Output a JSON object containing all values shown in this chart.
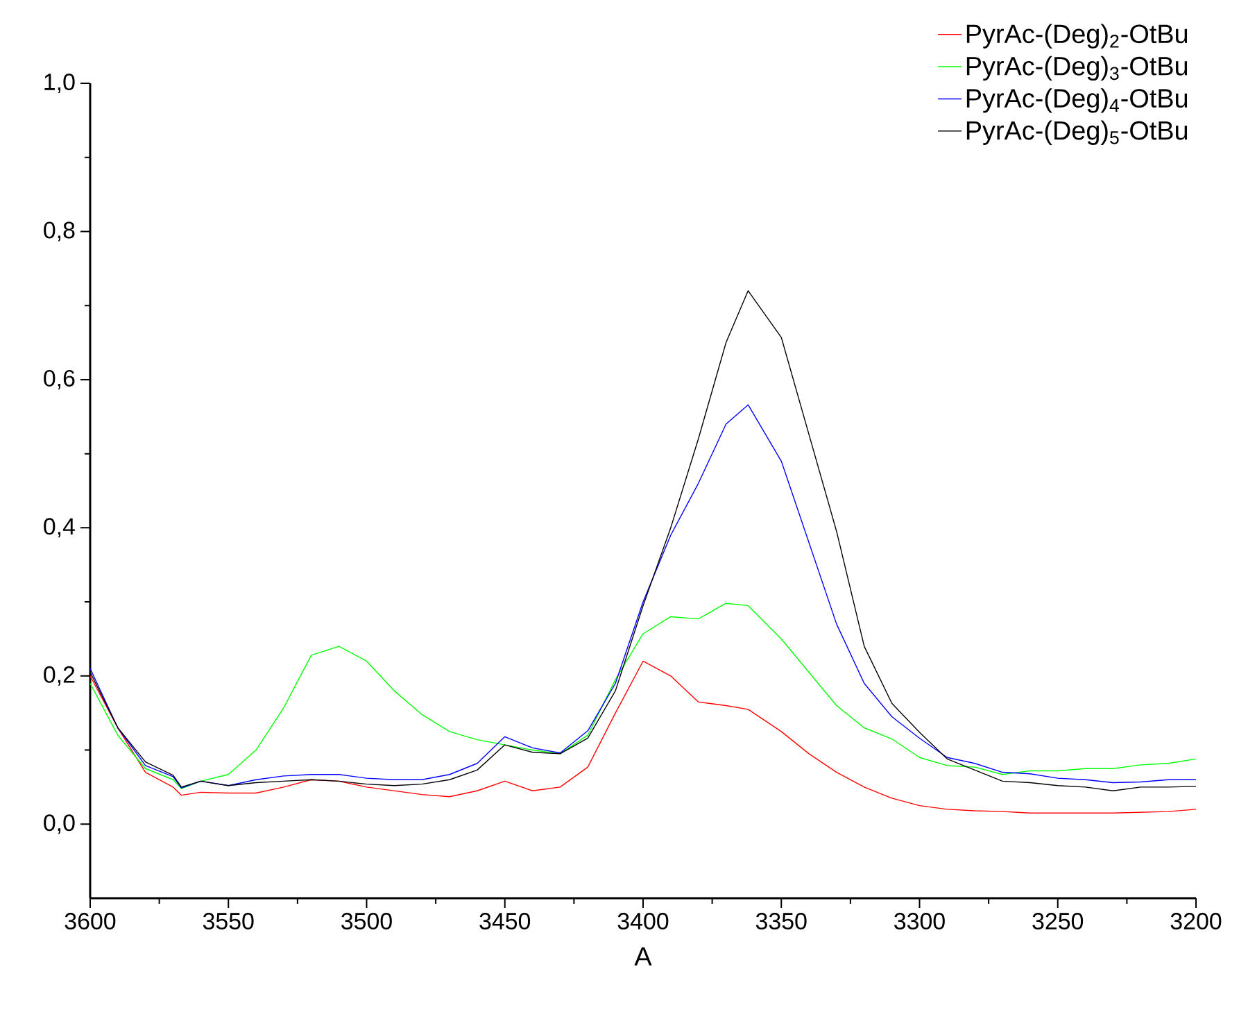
{
  "chart_data": {
    "type": "line",
    "xlabel": "A",
    "xlim": [
      3600,
      3200
    ],
    "ylim": [
      -0.1,
      1.0
    ],
    "xticks": [
      3600,
      3550,
      3500,
      3450,
      3400,
      3350,
      3300,
      3250,
      3200
    ],
    "yticks": [
      {
        "value": 0,
        "label": "0,0"
      },
      {
        "value": 0.2,
        "label": "0,2"
      },
      {
        "value": 0.4,
        "label": "0,4"
      },
      {
        "value": 0.6,
        "label": "0,6"
      },
      {
        "value": 0.8,
        "label": "0,8"
      },
      {
        "value": 1.0,
        "label": "1,0"
      }
    ],
    "legend": "top right",
    "line_style": "solid",
    "x": [
      3600,
      3590,
      3580,
      3570,
      3567,
      3560,
      3550,
      3540,
      3530,
      3520,
      3510,
      3500,
      3490,
      3480,
      3470,
      3460,
      3450,
      3440,
      3430,
      3420,
      3410,
      3400,
      3390,
      3380,
      3370,
      3362,
      3350,
      3340,
      3330,
      3320,
      3310,
      3300,
      3290,
      3280,
      3270,
      3260,
      3250,
      3240,
      3230,
      3220,
      3210,
      3200
    ],
    "series": [
      {
        "name": "PyrAc-(Deg)$_{2}$-OtBu",
        "color": "#ff0000",
        "values": [
          0.2,
          0.13,
          0.07,
          0.05,
          0.039,
          0.043,
          0.042,
          0.042,
          0.05,
          0.06,
          0.058,
          0.05,
          0.045,
          0.04,
          0.037,
          0.045,
          0.058,
          0.045,
          0.05,
          0.077,
          0.15,
          0.22,
          0.2,
          0.165,
          0.16,
          0.155,
          0.125,
          0.095,
          0.07,
          0.05,
          0.035,
          0.025,
          0.02,
          0.018,
          0.017,
          0.015,
          0.015,
          0.015,
          0.015,
          0.016,
          0.017,
          0.02
        ]
      },
      {
        "name": "PyrAc-(Deg)$_{3}$-OtBu",
        "color": "#00ff00",
        "values": [
          0.19,
          0.12,
          0.075,
          0.06,
          0.048,
          0.058,
          0.067,
          0.1,
          0.157,
          0.228,
          0.24,
          0.22,
          0.18,
          0.148,
          0.125,
          0.114,
          0.107,
          0.1,
          0.095,
          0.12,
          0.195,
          0.257,
          0.28,
          0.277,
          0.298,
          0.295,
          0.25,
          0.205,
          0.16,
          0.13,
          0.115,
          0.09,
          0.079,
          0.077,
          0.067,
          0.072,
          0.072,
          0.075,
          0.075,
          0.08,
          0.082,
          0.088
        ]
      },
      {
        "name": "PyrAc-(Deg)$_{4}$-OtBu",
        "color": "#0000ff",
        "values": [
          0.21,
          0.13,
          0.079,
          0.064,
          0.049,
          0.058,
          0.052,
          0.06,
          0.065,
          0.067,
          0.067,
          0.062,
          0.06,
          0.06,
          0.067,
          0.082,
          0.118,
          0.103,
          0.096,
          0.126,
          0.19,
          0.3,
          0.39,
          0.46,
          0.54,
          0.566,
          0.49,
          0.38,
          0.27,
          0.19,
          0.145,
          0.116,
          0.09,
          0.082,
          0.07,
          0.068,
          0.062,
          0.06,
          0.056,
          0.057,
          0.06,
          0.06
        ]
      },
      {
        "name": "PyrAc-(Deg)$_{5}$-OtBu",
        "color": "#000000",
        "values": [
          0.205,
          0.13,
          0.084,
          0.066,
          0.05,
          0.058,
          0.052,
          0.056,
          0.058,
          0.06,
          0.058,
          0.054,
          0.052,
          0.054,
          0.06,
          0.073,
          0.107,
          0.097,
          0.095,
          0.116,
          0.18,
          0.295,
          0.4,
          0.52,
          0.65,
          0.72,
          0.657,
          0.526,
          0.395,
          0.24,
          0.163,
          0.124,
          0.088,
          0.073,
          0.058,
          0.056,
          0.052,
          0.05,
          0.045,
          0.05,
          0.05,
          0.051
        ]
      }
    ]
  }
}
